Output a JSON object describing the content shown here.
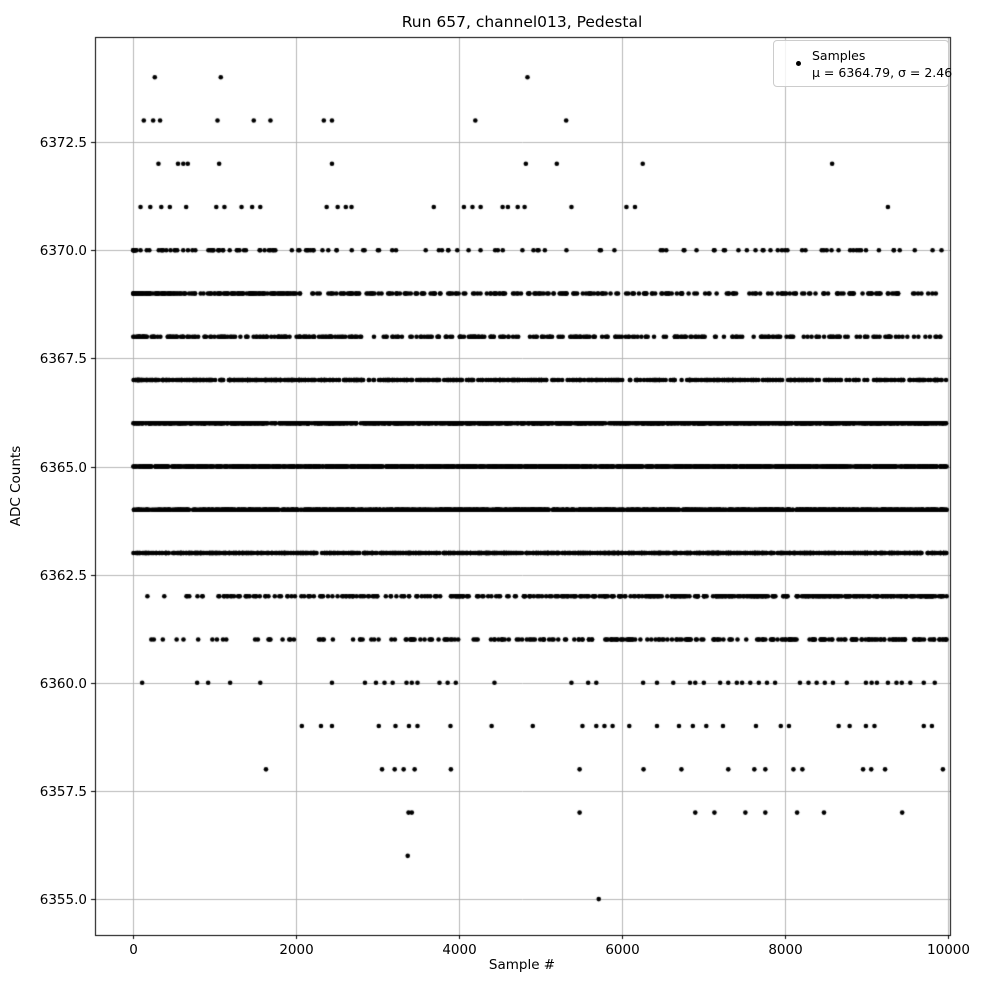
{
  "chart_data": {
    "type": "scatter",
    "title": "Run 657, channel013, Pedestal",
    "xlabel": "Sample #",
    "ylabel": "ADC Counts",
    "xlim": [
      -469,
      10027
    ],
    "ylim": [
      6354.17,
      6374.93
    ],
    "x_ticks": [
      0,
      2000,
      4000,
      6000,
      8000,
      10000
    ],
    "x_tick_labels": [
      "0",
      "2000",
      "4000",
      "6000",
      "8000",
      "10000"
    ],
    "y_ticks": [
      6355.0,
      6357.5,
      6360.0,
      6362.5,
      6365.0,
      6367.5,
      6370.0,
      6372.5
    ],
    "y_tick_labels": [
      "6355.0",
      "6357.5",
      "6360.0",
      "6362.5",
      "6365.0",
      "6367.5",
      "6370.0",
      "6372.5"
    ],
    "grid": true,
    "grid_color": "#b0b0b0",
    "axes_color": "#000000",
    "background_color": "#ffffff",
    "marker_color": "#000000",
    "marker_radius_px": 2.3,
    "legend": {
      "position": "upper right",
      "label": "Samples",
      "stats": "μ = 6364.79, σ = 2.46"
    },
    "series": [
      {
        "name": "Samples",
        "marker": "point",
        "color": "#000000",
        "mean": 6364.79,
        "sigma": 2.46,
        "adc_levels_explicit_x": {
          "6374": [
            265,
            1075,
            4840
          ],
          "6373": [
            130,
            245,
            330,
            1035,
            1480,
            1685,
            2340,
            2440,
            4200,
            5315
          ],
          "6372": [
            310,
            550,
            615,
            670,
            1055,
            2440,
            4820,
            5200,
            6255,
            8580
          ],
          "6371": [
            90,
            210,
            345,
            450,
            650,
            1020,
            1120,
            1330,
            1460,
            1560,
            2375,
            2510,
            2610,
            2680,
            3690,
            4060,
            4165,
            4265,
            4535,
            4600,
            4720,
            4805,
            5380,
            6055,
            6160,
            9265
          ],
          "6360": [
            110,
            785,
            920,
            1190,
            1560,
            2440,
            2845,
            2980,
            3085,
            3185,
            3355,
            3420,
            3490,
            3760,
            3860,
            3960,
            4435,
            5380,
            5585,
            5685,
            6260,
            6430,
            6630,
            6835,
            6900,
            7005,
            7205,
            7305,
            7410,
            7475,
            7575,
            7680,
            7780,
            7880,
            8185,
            8290,
            8390,
            8490,
            8590,
            8760,
            8995,
            9065,
            9130,
            9265,
            9370,
            9435,
            9540,
            9705,
            9840
          ],
          "6359": [
            2070,
            2305,
            2440,
            3015,
            3220,
            3385,
            3490,
            3895,
            4400,
            4905,
            5515,
            5685,
            5785,
            5885,
            6090,
            6430,
            6700,
            6870,
            7035,
            7240,
            7645,
            7950,
            8050,
            8660,
            8795,
            8995,
            9100,
            9705,
            9805
          ],
          "6358": [
            1630,
            3055,
            3210,
            3320,
            3455,
            3900,
            5480,
            6265,
            6730,
            7305,
            7625,
            7760,
            8105,
            8215,
            8960,
            9060,
            9230,
            9940
          ],
          "6357": [
            3380,
            3420,
            5480,
            6900,
            7135,
            7515,
            7760,
            8150,
            8480,
            9440
          ],
          "6356": [
            3370
          ],
          "6355": [
            5715
          ]
        },
        "adc_levels_approx_density": {
          "6361": {
            "count": 260,
            "skew": 0.55
          },
          "6362": {
            "count": 430,
            "skew": 0.62
          },
          "6363": {
            "count": 1050,
            "skew": 0.95
          },
          "6364": {
            "count": 1500,
            "skew": 1.0
          },
          "6365": {
            "count": 1400,
            "skew": 1.0
          },
          "6366": {
            "count": 1250,
            "skew": 1.02
          },
          "6367": {
            "count": 680,
            "skew": 1.22
          },
          "6368": {
            "count": 360,
            "skew": 1.3
          },
          "6369": {
            "count": 420,
            "skew": 1.5
          },
          "6370": {
            "count": 130,
            "skew": 1.6
          }
        }
      }
    ]
  }
}
